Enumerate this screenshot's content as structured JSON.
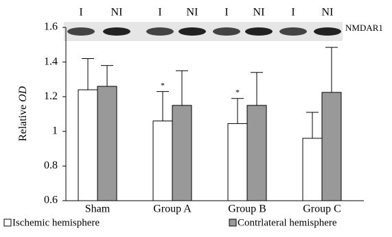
{
  "chart_data": {
    "type": "bar",
    "y_label": {
      "text": "Relative",
      "italic": "OD"
    },
    "categories": [
      "Sham",
      "Group A",
      "Group B",
      "Group C"
    ],
    "series": [
      {
        "name": "Ischemic hemisphere",
        "color": "#ffffff",
        "values": [
          1.24,
          1.06,
          1.045,
          0.96
        ],
        "errors": [
          0.18,
          0.17,
          0.145,
          0.15
        ],
        "markers": [
          null,
          "*",
          "*",
          null
        ]
      },
      {
        "name": "Contrlateral hemisphere",
        "color": "#999999",
        "values": [
          1.26,
          1.15,
          1.15,
          1.225
        ],
        "errors": [
          0.12,
          0.2,
          0.19,
          0.26
        ]
      }
    ],
    "ylim": [
      0.6,
      1.6
    ],
    "yticks": [
      0.6,
      0.8,
      1,
      1.2,
      1.4,
      1.6
    ],
    "blot": {
      "lanes": [
        "I",
        "NI",
        "I",
        "NI",
        "I",
        "NI",
        "I",
        "NI"
      ],
      "label": "NMDAR1"
    }
  }
}
